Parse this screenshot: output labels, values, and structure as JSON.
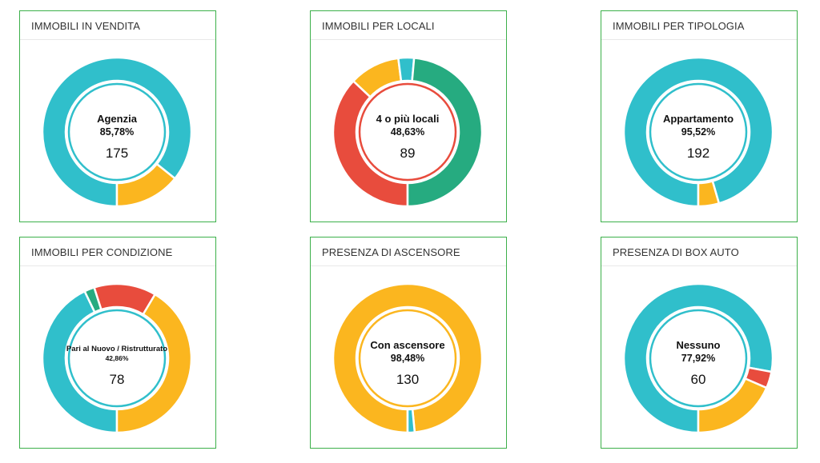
{
  "chart_data": [
    {
      "type": "pie",
      "title": "IMMOBILI IN VENDITA",
      "center": {
        "label": "Agenzia",
        "percent": "85,78%",
        "count": "175"
      },
      "slices": [
        {
          "value": 85.78,
          "color": "#30bfcb"
        },
        {
          "value": 14.22,
          "color": "#fbb61f"
        }
      ]
    },
    {
      "type": "pie",
      "title": "IMMOBILI PER LOCALI",
      "center": {
        "label": "4 o più locali",
        "percent": "48,63%",
        "count": "89"
      },
      "slices": [
        {
          "value": 37.0,
          "color": "#e84c3d"
        },
        {
          "value": 11.0,
          "color": "#fbb61f"
        },
        {
          "value": 3.4,
          "color": "#30bfcb"
        },
        {
          "value": 48.6,
          "color": "#26ab80"
        }
      ]
    },
    {
      "type": "pie",
      "title": "IMMOBILI PER TIPOLOGIA",
      "center": {
        "label": "Appartamento",
        "percent": "95,52%",
        "count": "192"
      },
      "slices": [
        {
          "value": 95.52,
          "color": "#30bfcb"
        },
        {
          "value": 4.48,
          "color": "#fbb61f"
        }
      ]
    },
    {
      "type": "pie",
      "title": "IMMOBILI PER CONDIZIONE",
      "center": {
        "label": "Pari al Nuovo / Ristrutturato",
        "percent": "42,86%",
        "count": "78"
      },
      "slices": [
        {
          "value": 42.86,
          "color": "#30bfcb"
        },
        {
          "value": 2.2,
          "color": "#26ab80"
        },
        {
          "value": 13.5,
          "color": "#e84c3d"
        },
        {
          "value": 41.44,
          "color": "#fbb61f"
        }
      ]
    },
    {
      "type": "pie",
      "title": "PRESENZA DI ASCENSORE",
      "center": {
        "label": "Con ascensore",
        "percent": "98,48%",
        "count": "130"
      },
      "slices": [
        {
          "value": 98.48,
          "color": "#fbb61f"
        },
        {
          "value": 1.52,
          "color": "#30bfcb"
        }
      ]
    },
    {
      "type": "pie",
      "title": "PRESENZA DI BOX AUTO",
      "center": {
        "label": "Nessuno",
        "percent": "77,92%",
        "count": "60"
      },
      "slices": [
        {
          "value": 77.92,
          "color": "#30bfcb"
        },
        {
          "value": 3.6,
          "color": "#e84c3d"
        },
        {
          "value": 18.48,
          "color": "#fbb61f"
        }
      ]
    }
  ]
}
